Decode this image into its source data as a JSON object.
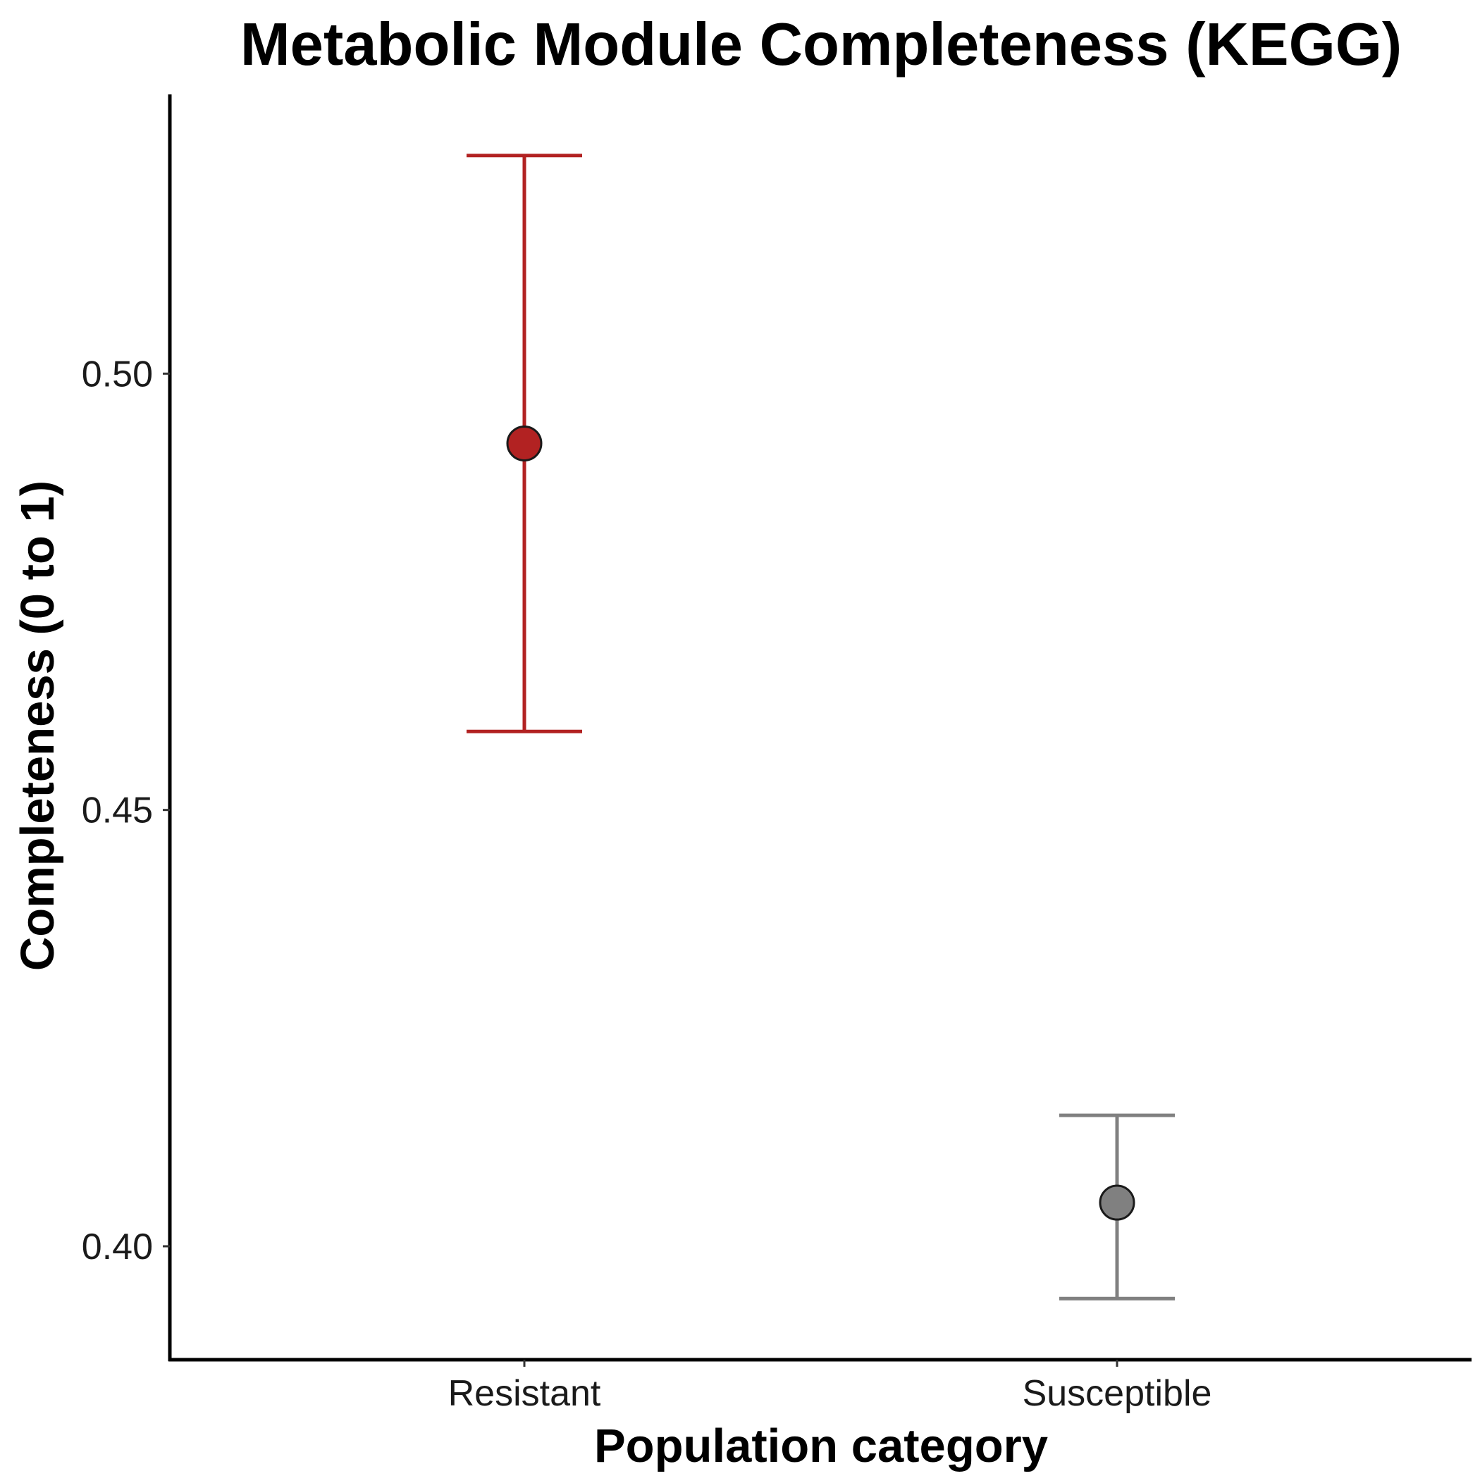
{
  "chart_data": {
    "type": "scatter",
    "title": "Metabolic Module Completeness (KEGG)",
    "xlabel": "Population category",
    "ylabel": "Completeness (0 to 1)",
    "categories": [
      "Resistant",
      "Susceptible"
    ],
    "points": [
      {
        "category": "Resistant",
        "mean": 0.492,
        "lower": 0.459,
        "upper": 0.525,
        "color": "#B22222"
      },
      {
        "category": "Susceptible",
        "mean": 0.405,
        "lower": 0.394,
        "upper": 0.415,
        "color": "#808080"
      }
    ],
    "ylim": [
      0.387,
      0.532
    ],
    "yticks": [
      0.4,
      0.45,
      0.5
    ],
    "ytick_labels": [
      "0.40",
      "0.45",
      "0.50"
    ],
    "grid": false,
    "legend": "none"
  }
}
